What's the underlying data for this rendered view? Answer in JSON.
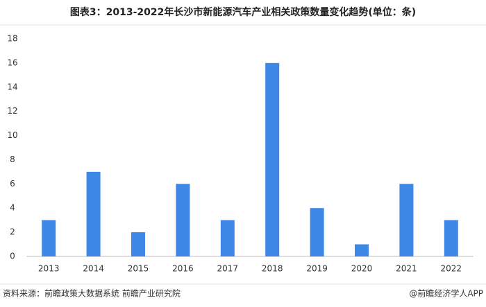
{
  "chart_data": {
    "type": "bar",
    "title": "图表3：2013-2022年长沙市新能源汽车产业相关政策数量变化趋势(单位：条)",
    "categories": [
      "2013",
      "2014",
      "2015",
      "2016",
      "2017",
      "2018",
      "2019",
      "2020",
      "2021",
      "2022"
    ],
    "values": [
      3,
      7,
      2,
      6,
      3,
      16,
      4,
      1,
      6,
      3
    ],
    "color": "#3d87e6",
    "ylim": [
      0,
      18
    ],
    "yticks": [
      0,
      2,
      4,
      6,
      8,
      10,
      12,
      14,
      16,
      18
    ],
    "grid": false
  },
  "footer": {
    "source": "资料来源：前瞻政策大数据系统 前瞻产业研究院",
    "credit": "@前瞻经济学人APP"
  }
}
